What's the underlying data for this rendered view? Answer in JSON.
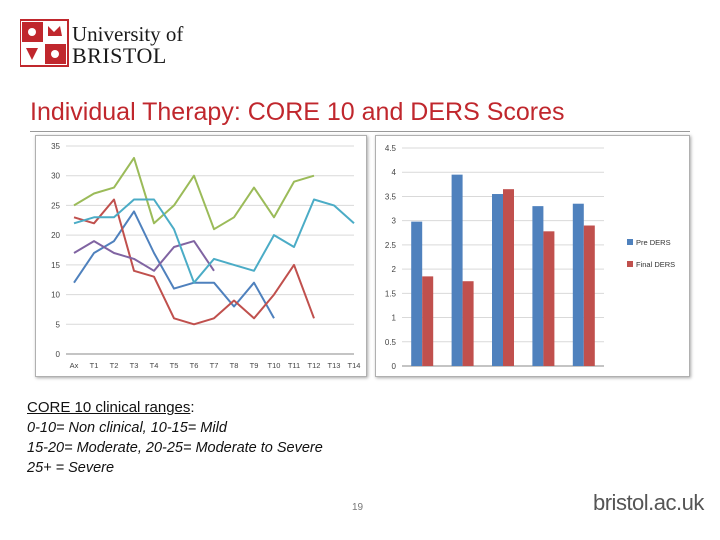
{
  "header": {
    "university_line1": "University of",
    "university_line2": "BRISTOL",
    "title": "Individual Therapy: CORE 10  and DERS Scores"
  },
  "chart_data": [
    {
      "type": "line",
      "title": "",
      "xlabel": "",
      "ylabel": "",
      "categories": [
        "Ax",
        "T1",
        "T2",
        "T3",
        "T4",
        "T5",
        "T6",
        "T7",
        "T8",
        "T9",
        "T10",
        "T11",
        "T12",
        "T13",
        "T14"
      ],
      "ylim": [
        0,
        35
      ],
      "yticks": [
        0,
        5,
        10,
        15,
        20,
        25,
        30,
        35
      ],
      "grid": true,
      "legend": "none",
      "series": [
        {
          "color": "#4f81bd",
          "values": [
            12,
            17,
            19,
            24,
            17,
            11,
            12,
            12,
            8,
            12,
            6,
            null,
            null,
            null,
            null
          ]
        },
        {
          "color": "#c0504d",
          "values": [
            23,
            22,
            26,
            14,
            13,
            6,
            5,
            6,
            9,
            6,
            10,
            15,
            6,
            null,
            null
          ]
        },
        {
          "color": "#9bbb59",
          "values": [
            25,
            27,
            28,
            33,
            22,
            25,
            30,
            21,
            23,
            28,
            23,
            29,
            30,
            null,
            null
          ]
        },
        {
          "color": "#8064a2",
          "values": [
            17,
            19,
            17,
            16,
            14,
            18,
            19,
            14,
            null,
            null,
            null,
            null,
            null,
            null,
            null
          ]
        },
        {
          "color": "#4bacc6",
          "values": [
            22,
            23,
            23,
            26,
            26,
            21,
            12,
            16,
            15,
            14,
            20,
            18,
            26,
            25,
            22
          ]
        }
      ]
    },
    {
      "type": "bar",
      "title": "",
      "xlabel": "",
      "ylabel": "",
      "categories": [
        "1",
        "2",
        "3",
        "4",
        "5"
      ],
      "ylim": [
        0,
        4.5
      ],
      "yticks": [
        "0",
        "0.5",
        "1",
        "1.5",
        "2",
        "2.5",
        "3",
        "3.5",
        "4",
        "4.5"
      ],
      "grid": true,
      "legend": "right",
      "series": [
        {
          "name": "Pre DERS",
          "color": "#4f81bd",
          "values": [
            2.98,
            3.95,
            3.55,
            3.3,
            3.35
          ]
        },
        {
          "name": "Final DERS",
          "color": "#c0504d",
          "values": [
            1.85,
            1.75,
            3.65,
            2.78,
            2.9
          ]
        }
      ]
    }
  ],
  "ranges": {
    "heading": "CORE 10 clinical ranges",
    "heading_suffix": ":",
    "line1": "0-10= Non clinical, 10-15= Mild",
    "line2": "15-20= Moderate, 20-25= Moderate to Severe",
    "line3": "25+ = Severe"
  },
  "footer": {
    "page_number": "19",
    "url": "bristol.ac.uk"
  }
}
